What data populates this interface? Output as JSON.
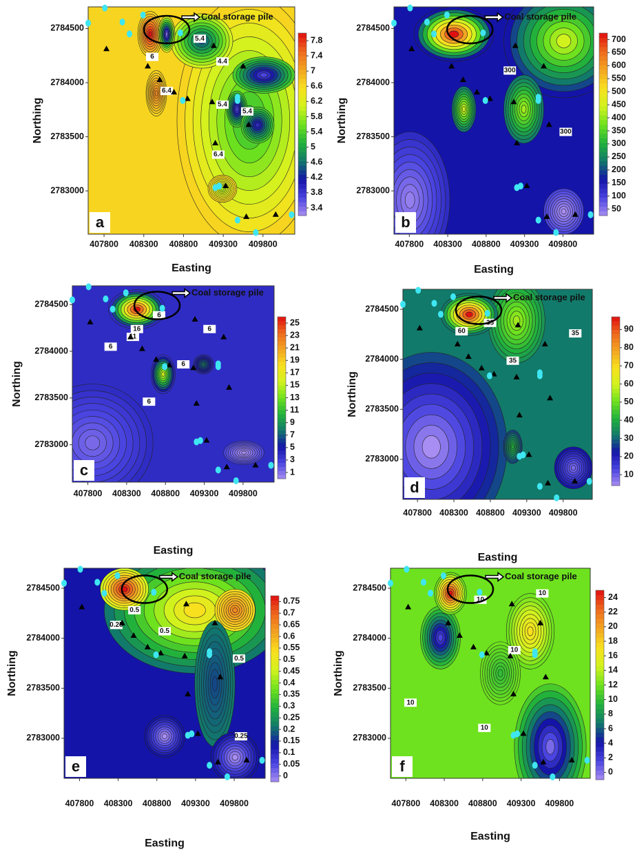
{
  "chart_data": [
    {
      "type": "contour",
      "panel_label": "a",
      "x_label": "Easting",
      "y_label": "Northing",
      "annotation": "Coal storage pile",
      "xlim": [
        407600,
        410200
      ],
      "ylim": [
        2782600,
        2784700
      ],
      "xticks": [
        407800,
        408300,
        408800,
        409300,
        409800
      ],
      "yticks": [
        2783000,
        2783500,
        2784000,
        2784500
      ],
      "clim": [
        3.2,
        8.0
      ],
      "colorbar_ticks": [
        3.4,
        3.8,
        4.2,
        4.6,
        5,
        5.4,
        5.8,
        6.2,
        6.6,
        7,
        7.4,
        7.8
      ],
      "colormap": [
        "#a88ef2",
        "#4a44e0",
        "#1414a8",
        "#127a6a",
        "#22b23c",
        "#6ee21e",
        "#d2f21e",
        "#f8e01e",
        "#f2a522",
        "#ee6a1e",
        "#e01010"
      ],
      "contour_labels": [
        "6",
        "5.4",
        "4.4",
        "6.4",
        "5.4",
        "5.4",
        "6.4"
      ],
      "triangles": {
        "x": [
          407830,
          408350,
          408500,
          408680,
          408850,
          409180,
          409550,
          409160,
          409620,
          409200,
          409330,
          409590,
          409960
        ],
        "y": [
          2784310,
          2784150,
          2784025,
          2783910,
          2783850,
          2784340,
          2784150,
          2783820,
          2783610,
          2783440,
          2783045,
          2782760,
          2782780
        ]
      },
      "dots": {
        "x": [
          407600,
          407810,
          408030,
          408120,
          408290,
          408760,
          408790,
          409480,
          409480,
          409250,
          409200,
          409480,
          409710,
          410160
        ],
        "y": [
          2784550,
          2784690,
          2784560,
          2784450,
          2784625,
          2784460,
          2783835,
          2783865,
          2783835,
          2783045,
          2783030,
          2782730,
          2782615,
          2782780
        ]
      }
    },
    {
      "type": "contour",
      "panel_label": "b",
      "x_label": "Easting",
      "y_label": "Northing",
      "annotation": "Coal storage pile",
      "xlim": [
        407600,
        410200
      ],
      "ylim": [
        2782600,
        2784700
      ],
      "xticks": [
        407800,
        408300,
        408800,
        409300,
        409800
      ],
      "yticks": [
        2783000,
        2783500,
        2784000,
        2784500
      ],
      "clim": [
        25,
        725
      ],
      "colorbar_ticks": [
        50,
        100,
        150,
        200,
        250,
        300,
        350,
        400,
        450,
        500,
        550,
        600,
        650,
        700
      ],
      "colormap": [
        "#a88ef2",
        "#4a44e0",
        "#1414a8",
        "#127a6a",
        "#22b23c",
        "#6ee21e",
        "#d2f21e",
        "#f8e01e",
        "#f2a522",
        "#ee6a1e",
        "#e01010"
      ],
      "contour_labels": [
        "300",
        "300"
      ],
      "triangles": {
        "x": [
          407830,
          408350,
          408500,
          408680,
          408850,
          409180,
          409550,
          409160,
          409620,
          409200,
          409330,
          409590,
          409960
        ],
        "y": [
          2784310,
          2784150,
          2784025,
          2783910,
          2783850,
          2784340,
          2784150,
          2783820,
          2783610,
          2783440,
          2783045,
          2782760,
          2782780
        ]
      },
      "dots": {
        "x": [
          407600,
          407810,
          408030,
          408120,
          408290,
          408760,
          408790,
          409480,
          409480,
          409250,
          409200,
          409480,
          409710,
          410160
        ],
        "y": [
          2784550,
          2784690,
          2784560,
          2784450,
          2784625,
          2784460,
          2783835,
          2783865,
          2783835,
          2783045,
          2783030,
          2782730,
          2782615,
          2782780
        ]
      }
    },
    {
      "type": "contour",
      "panel_label": "c",
      "x_label": "Easting",
      "y_label": "Northing",
      "annotation": "Coal storage pile",
      "xlim": [
        407600,
        410200
      ],
      "ylim": [
        2782600,
        2784700
      ],
      "xticks": [
        407800,
        408300,
        408800,
        409300,
        409800
      ],
      "yticks": [
        2783000,
        2783500,
        2784000,
        2784500
      ],
      "clim": [
        0,
        26
      ],
      "colorbar_ticks": [
        1,
        3,
        5,
        7,
        9,
        11,
        13,
        15,
        17,
        19,
        21,
        23,
        25
      ],
      "colormap": [
        "#a88ef2",
        "#4a44e0",
        "#1414a8",
        "#127a6a",
        "#22b23c",
        "#6ee21e",
        "#d2f21e",
        "#f8e01e",
        "#f2a522",
        "#ee6a1e",
        "#e01010"
      ],
      "contour_labels": [
        "6",
        "16",
        "11",
        "6",
        "6",
        "6",
        "6"
      ],
      "triangles": {
        "x": [
          407830,
          408350,
          408500,
          408680,
          408850,
          409180,
          409550,
          409160,
          409620,
          409200,
          409330,
          409590,
          409960
        ],
        "y": [
          2784310,
          2784150,
          2784025,
          2783910,
          2783850,
          2784340,
          2784150,
          2783820,
          2783610,
          2783440,
          2783045,
          2782760,
          2782780
        ]
      },
      "dots": {
        "x": [
          407600,
          407810,
          408030,
          408120,
          408290,
          408760,
          408790,
          409480,
          409480,
          409250,
          409200,
          409480,
          409710,
          410160
        ],
        "y": [
          2784550,
          2784690,
          2784560,
          2784450,
          2784625,
          2784460,
          2783835,
          2783865,
          2783835,
          2783045,
          2783030,
          2782730,
          2782615,
          2782780
        ]
      }
    },
    {
      "type": "contour",
      "panel_label": "d",
      "x_label": "Easting",
      "y_label": "Northing",
      "annotation": "Coal storage pile",
      "xlim": [
        407600,
        410200
      ],
      "ylim": [
        2782600,
        2784700
      ],
      "xticks": [
        407800,
        408300,
        408800,
        409300,
        409800
      ],
      "yticks": [
        2783000,
        2783500,
        2784000,
        2784500
      ],
      "clim": [
        4,
        97
      ],
      "colorbar_ticks": [
        10,
        20,
        30,
        40,
        50,
        60,
        70,
        80,
        90
      ],
      "colormap": [
        "#a88ef2",
        "#4a44e0",
        "#1414a8",
        "#127a6a",
        "#22b23c",
        "#6ee21e",
        "#d2f21e",
        "#f8e01e",
        "#f2a522",
        "#ee6a1e",
        "#e01010"
      ],
      "contour_labels": [
        "60",
        "35",
        "35",
        "35"
      ],
      "triangles": {
        "x": [
          407830,
          408350,
          408500,
          408680,
          408850,
          409180,
          409550,
          409160,
          409620,
          409200,
          409330,
          409590,
          409960
        ],
        "y": [
          2784310,
          2784150,
          2784025,
          2783910,
          2783850,
          2784340,
          2784150,
          2783820,
          2783610,
          2783440,
          2783045,
          2782760,
          2782780
        ]
      },
      "dots": {
        "x": [
          407600,
          407810,
          408030,
          408120,
          408290,
          408760,
          408790,
          409480,
          409480,
          409250,
          409200,
          409480,
          409710,
          410160
        ],
        "y": [
          2784550,
          2784690,
          2784560,
          2784450,
          2784625,
          2784460,
          2783835,
          2783865,
          2783835,
          2783045,
          2783030,
          2782730,
          2782615,
          2782780
        ]
      }
    },
    {
      "type": "contour",
      "panel_label": "e",
      "x_label": "Easting",
      "y_label": "Northing",
      "annotation": "Coal storage pile",
      "xlim": [
        407600,
        410200
      ],
      "ylim": [
        2782600,
        2784700
      ],
      "xticks": [
        407800,
        408300,
        408800,
        409300,
        409800
      ],
      "yticks": [
        2783000,
        2783500,
        2784000,
        2784500
      ],
      "clim": [
        -0.025,
        0.775
      ],
      "colorbar_ticks": [
        0,
        0.05,
        0.1,
        0.15,
        0.2,
        0.25,
        0.3,
        0.35,
        0.4,
        0.45,
        0.5,
        0.55,
        0.6,
        0.65,
        0.7,
        0.75
      ],
      "colormap": [
        "#a88ef2",
        "#4a44e0",
        "#1414a8",
        "#127a6a",
        "#22b23c",
        "#6ee21e",
        "#d2f21e",
        "#f8e01e",
        "#f2a522",
        "#ee6a1e",
        "#e01010"
      ],
      "contour_labels": [
        "0.5",
        "0.25",
        "0.5",
        "0.5",
        "0.25"
      ],
      "triangles": {
        "x": [
          407830,
          408350,
          408500,
          408680,
          408850,
          409180,
          409550,
          409160,
          409620,
          409200,
          409330,
          409590,
          409960
        ],
        "y": [
          2784310,
          2784150,
          2784025,
          2783910,
          2783850,
          2784340,
          2784150,
          2783820,
          2783610,
          2783440,
          2783045,
          2782760,
          2782780
        ]
      },
      "dots": {
        "x": [
          407600,
          407810,
          408030,
          408120,
          408290,
          408760,
          408790,
          409480,
          409480,
          409250,
          409200,
          409480,
          409710,
          410160
        ],
        "y": [
          2784550,
          2784690,
          2784560,
          2784450,
          2784625,
          2784460,
          2783835,
          2783865,
          2783835,
          2783045,
          2783030,
          2782730,
          2782615,
          2782780
        ]
      }
    },
    {
      "type": "contour",
      "panel_label": "f",
      "x_label": "Easting",
      "y_label": "Northing",
      "annotation": "Coal storage pile",
      "xlim": [
        407600,
        410200
      ],
      "ylim": [
        2782600,
        2784700
      ],
      "xticks": [
        407800,
        408300,
        408800,
        409300,
        409800
      ],
      "yticks": [
        2783000,
        2783500,
        2784000,
        2784500
      ],
      "clim": [
        -1,
        25
      ],
      "colorbar_ticks": [
        0,
        2,
        4,
        6,
        8,
        10,
        12,
        14,
        16,
        18,
        20,
        22,
        24
      ],
      "colormap": [
        "#a88ef2",
        "#4a44e0",
        "#1414a8",
        "#127a6a",
        "#22b23c",
        "#6ee21e",
        "#d2f21e",
        "#f8e01e",
        "#f2a522",
        "#ee6a1e",
        "#e01010"
      ],
      "contour_labels": [
        "10",
        "10",
        "10",
        "10",
        "10"
      ],
      "triangles": {
        "x": [
          407830,
          408350,
          408500,
          408680,
          408850,
          409180,
          409550,
          409160,
          409620,
          409200,
          409330,
          409590,
          409960
        ],
        "y": [
          2784310,
          2784150,
          2784025,
          2783910,
          2783850,
          2784340,
          2784150,
          2783820,
          2783610,
          2783440,
          2783045,
          2782760,
          2782780
        ]
      },
      "dots": {
        "x": [
          407600,
          407810,
          408030,
          408120,
          408290,
          408760,
          408790,
          409480,
          409480,
          409250,
          409200,
          409480,
          409710,
          410160
        ],
        "y": [
          2784550,
          2784690,
          2784560,
          2784450,
          2784625,
          2784460,
          2783835,
          2783865,
          2783835,
          2783045,
          2783030,
          2782730,
          2782615,
          2782780
        ]
      }
    }
  ]
}
